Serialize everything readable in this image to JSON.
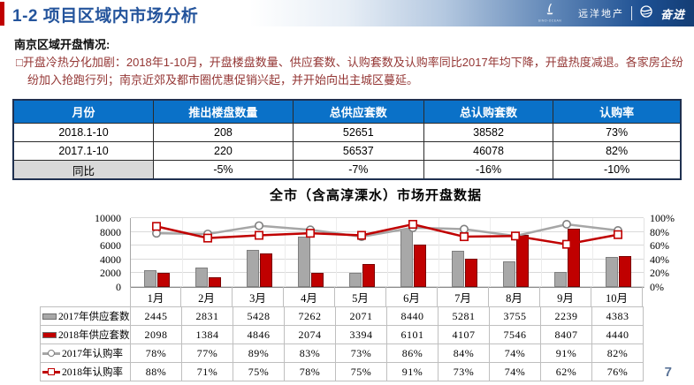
{
  "header": {
    "title": "1-2 项目区域内市场分析",
    "brand": "远洋地产",
    "brand_sub": "SINO-OCEAN",
    "slogan": "奋进"
  },
  "section": {
    "subtitle": "南京区域开盘情况:",
    "bullet_icon": "□",
    "bullet_text": "开盘冷热分化加剧：2018年1-10月，开盘楼盘数量、供应套数、认购套数及认购率同比2017年均下降，开盘热度减退。各家房企纷纷加入抢跑行列；南京近郊及都市圈优惠促销兴起，并开始向出主城区蔓延。"
  },
  "summary_table": {
    "headers": [
      "月份",
      "推出楼盘数量",
      "总供应套数",
      "总认购套数",
      "认购率"
    ],
    "rows": [
      [
        "2018.1-10",
        "208",
        "52651",
        "38582",
        "73%"
      ],
      [
        "2017.1-10",
        "220",
        "56537",
        "46078",
        "82%"
      ],
      [
        "同比",
        "-5%",
        "-7%",
        "-16%",
        "-10%"
      ]
    ]
  },
  "chart_data": {
    "type": "bar+line combo",
    "title": "全市（含高淳溧水）市场开盘数据",
    "categories": [
      "1月",
      "2月",
      "3月",
      "4月",
      "5月",
      "6月",
      "7月",
      "8月",
      "9月",
      "10月"
    ],
    "series": [
      {
        "name": "2017年供应套数",
        "type": "bar",
        "axis": "left",
        "color": "#A8A8A8",
        "border": "#7F7F7F",
        "values": [
          2445,
          2831,
          5428,
          7262,
          2071,
          8440,
          5281,
          3755,
          2239,
          4383
        ]
      },
      {
        "name": "2018年供应套数",
        "type": "bar",
        "axis": "left",
        "color": "#C00000",
        "border": "#7A0000",
        "values": [
          2098,
          1384,
          4846,
          2074,
          3394,
          6101,
          4107,
          7546,
          8407,
          4440
        ]
      },
      {
        "name": "2017年认购率",
        "type": "line",
        "axis": "right",
        "color": "#A6A6A6",
        "marker": "circle",
        "marker_color": "#808080",
        "values": [
          78,
          77,
          89,
          83,
          73,
          86,
          84,
          74,
          91,
          82
        ]
      },
      {
        "name": "2018年认购率",
        "type": "line",
        "axis": "right",
        "color": "#C00000",
        "marker": "square",
        "marker_color": "#C00000",
        "values": [
          88,
          71,
          75,
          78,
          75,
          91,
          73,
          74,
          62,
          76
        ]
      }
    ],
    "left_axis": {
      "min": 0,
      "max": 10000,
      "ticks": [
        0,
        2000,
        4000,
        6000,
        8000,
        10000
      ]
    },
    "right_axis": {
      "min": 0,
      "max": 100,
      "ticks": [
        "0%",
        "20%",
        "40%",
        "60%",
        "80%",
        "100%"
      ]
    },
    "grid": true,
    "legend_position": "table-left"
  },
  "page_number": "7",
  "colors": {
    "accent_red": "#C00000",
    "title_blue": "#24549C",
    "table_header_blue": "#0A71C8",
    "body_text_red": "#943634",
    "bar_gray": "#A8A8A8",
    "bar_red": "#C00000",
    "page_number_blue": "#5B7498"
  }
}
